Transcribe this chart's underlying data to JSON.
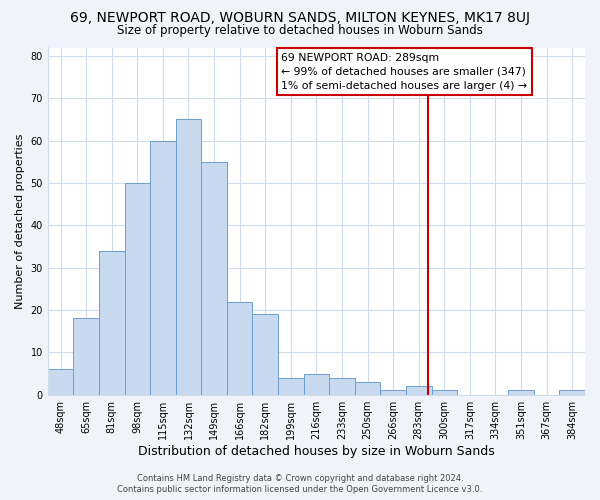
{
  "title": "69, NEWPORT ROAD, WOBURN SANDS, MILTON KEYNES, MK17 8UJ",
  "subtitle": "Size of property relative to detached houses in Woburn Sands",
  "xlabel": "Distribution of detached houses by size in Woburn Sands",
  "ylabel": "Number of detached properties",
  "footer_line1": "Contains HM Land Registry data © Crown copyright and database right 2024.",
  "footer_line2": "Contains public sector information licensed under the Open Government Licence v3.0.",
  "bin_labels": [
    "48sqm",
    "65sqm",
    "81sqm",
    "98sqm",
    "115sqm",
    "132sqm",
    "149sqm",
    "166sqm",
    "182sqm",
    "199sqm",
    "216sqm",
    "233sqm",
    "250sqm",
    "266sqm",
    "283sqm",
    "300sqm",
    "317sqm",
    "334sqm",
    "351sqm",
    "367sqm",
    "384sqm"
  ],
  "bar_values": [
    6,
    18,
    34,
    50,
    60,
    65,
    55,
    22,
    19,
    4,
    5,
    4,
    3,
    1,
    2,
    1,
    0,
    0,
    1,
    0,
    1
  ],
  "bar_color": "#c9d9f0",
  "bar_edge_color": "#6a9fd0",
  "vline_x_index": 14.35,
  "vline_color": "#cc0000",
  "annotation_title": "69 NEWPORT ROAD: 289sqm",
  "annotation_line1": "← 99% of detached houses are smaller (347)",
  "annotation_line2": "1% of semi-detached houses are larger (4) →",
  "ylim": [
    0,
    82
  ],
  "yticks": [
    0,
    10,
    20,
    30,
    40,
    50,
    60,
    70,
    80
  ],
  "plot_bg_color": "#ffffff",
  "fig_bg_color": "#f0f4fa",
  "grid_color": "#d0dce8",
  "title_fontsize": 10,
  "subtitle_fontsize": 8.5,
  "xlabel_fontsize": 9,
  "ylabel_fontsize": 8,
  "tick_fontsize": 7,
  "footer_fontsize": 6
}
